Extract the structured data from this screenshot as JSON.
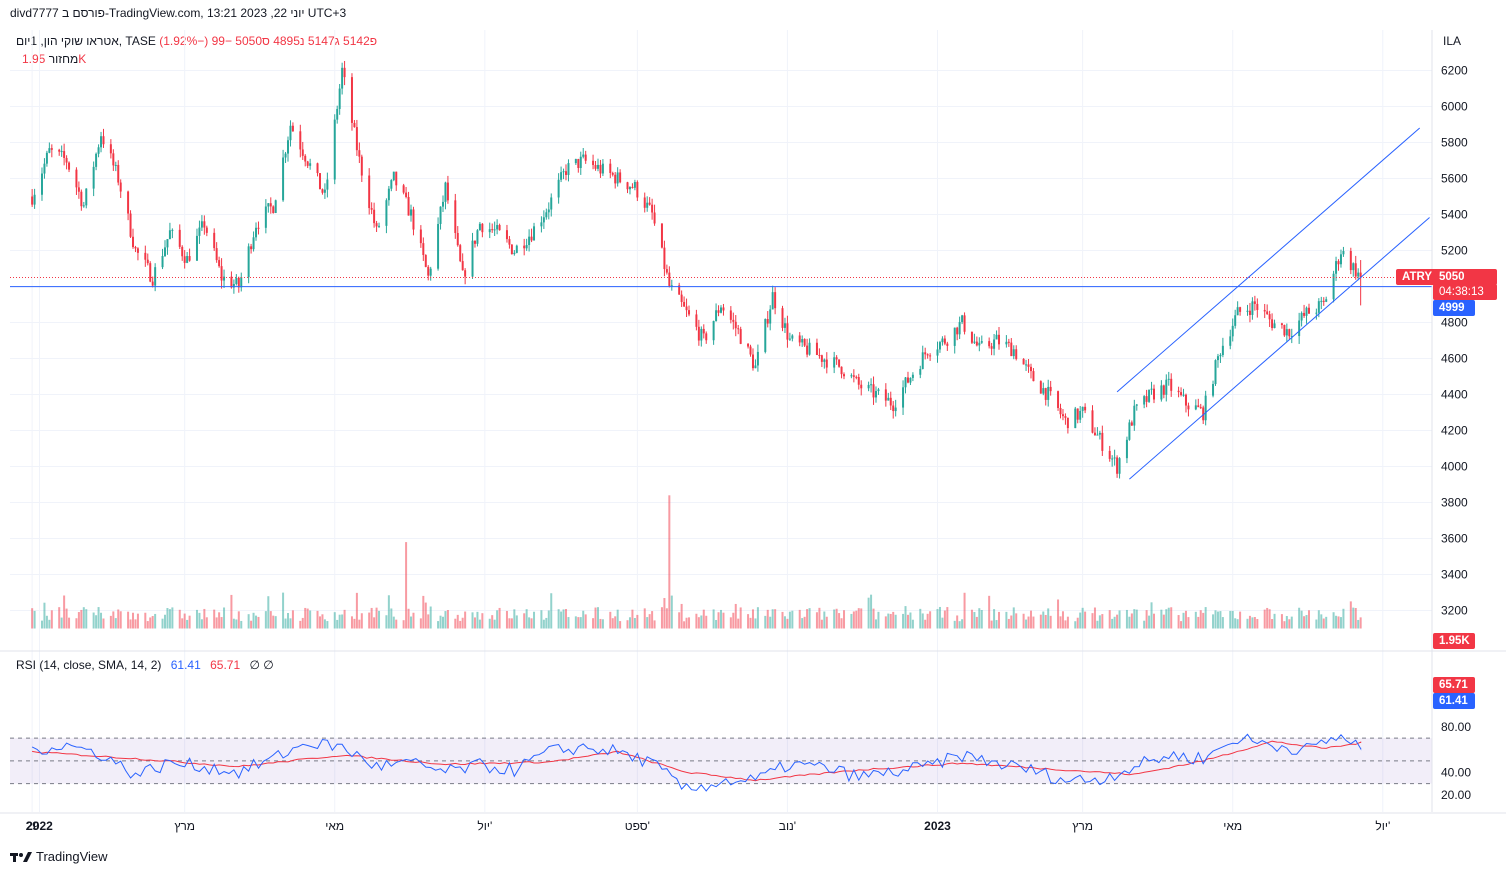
{
  "header": {
    "publisher_line": "divd7777 פורסם ב-TradingView.com, יוני 22, 2023 13:21 UTC+3"
  },
  "legend": {
    "title": "אטראו שוקי הון, 1יום, TASE",
    "ohlc": "פ5142 ג5147 נ4895 ס5050 −99 (−1.92%)"
  },
  "volume_legend": {
    "label": "מחזור",
    "value": "1.95K"
  },
  "rsi_legend": {
    "label": "RSI (14, close, SMA, 14, 2)",
    "rsi": "61.41",
    "sma": "65.71",
    "extra": "∅  ∅"
  },
  "currency": "ILA",
  "price_tags": {
    "symbol": "ATRY",
    "last": "5050",
    "countdown": "04:38:13",
    "hline": "4999",
    "volume": "1.95K",
    "rsi_sma": "65.71",
    "rsi": "61.41"
  },
  "footer": {
    "brand": "TradingView"
  },
  "colors": {
    "up": "#26a69a",
    "down": "#f23645",
    "line": "#2962ff",
    "rsi_sma": "#f23645"
  },
  "chart_data": {
    "type": "candlestick",
    "price_axis": {
      "ticks": [
        3200,
        3400,
        3600,
        3800,
        4000,
        4200,
        4400,
        4600,
        4800,
        5000,
        5200,
        5400,
        5600,
        5800,
        6000,
        6200
      ]
    },
    "rsi_axis": {
      "ticks": [
        "20.00",
        "40.00",
        "80.00"
      ],
      "upper_band": 70,
      "lower_band": 30,
      "middle": 50
    },
    "x_labels": [
      "29",
      "2022",
      "מרץ",
      "מאי",
      "יול'",
      "ספט'",
      "נוב'",
      "2023",
      "מרץ",
      "מאי",
      "יול'"
    ],
    "horizontal_line": 4999,
    "last_price": 5050,
    "channel": {
      "start": [
        "2023-03-20",
        3930
      ],
      "end": [
        "2023-06-22",
        5050
      ]
    },
    "price_path": [
      [
        "2021-12-29",
        5500
      ],
      [
        "2022-01-05",
        5750
      ],
      [
        "2022-01-12",
        5700
      ],
      [
        "2022-01-19",
        5450
      ],
      [
        "2022-01-26",
        5850
      ],
      [
        "2022-02-02",
        5600
      ],
      [
        "2022-02-09",
        5200
      ],
      [
        "2022-02-16",
        5050
      ],
      [
        "2022-02-23",
        5300
      ],
      [
        "2022-03-02",
        5150
      ],
      [
        "2022-03-09",
        5350
      ],
      [
        "2022-03-16",
        5050
      ],
      [
        "2022-03-23",
        5000
      ],
      [
        "2022-03-30",
        5350
      ],
      [
        "2022-04-06",
        5450
      ],
      [
        "2022-04-13",
        5900
      ],
      [
        "2022-04-20",
        5700
      ],
      [
        "2022-04-27",
        5500
      ],
      [
        "2022-05-04",
        6200
      ],
      [
        "2022-05-11",
        5700
      ],
      [
        "2022-05-18",
        5300
      ],
      [
        "2022-05-25",
        5600
      ],
      [
        "2022-06-01",
        5400
      ],
      [
        "2022-06-08",
        5050
      ],
      [
        "2022-06-15",
        5550
      ],
      [
        "2022-06-22",
        5050
      ],
      [
        "2022-06-29",
        5350
      ],
      [
        "2022-07-06",
        5300
      ],
      [
        "2022-07-13",
        5200
      ],
      [
        "2022-07-20",
        5300
      ],
      [
        "2022-07-27",
        5450
      ],
      [
        "2022-08-03",
        5650
      ],
      [
        "2022-08-10",
        5700
      ],
      [
        "2022-08-17",
        5650
      ],
      [
        "2022-08-24",
        5600
      ],
      [
        "2022-08-31",
        5550
      ],
      [
        "2022-09-07",
        5400
      ],
      [
        "2022-09-14",
        5000
      ],
      [
        "2022-09-21",
        4850
      ],
      [
        "2022-09-28",
        4700
      ],
      [
        "2022-10-05",
        4900
      ],
      [
        "2022-10-12",
        4750
      ],
      [
        "2022-10-19",
        4550
      ],
      [
        "2022-10-26",
        4950
      ],
      [
        "2022-11-02",
        4700
      ],
      [
        "2022-11-09",
        4650
      ],
      [
        "2022-11-16",
        4600
      ],
      [
        "2022-11-23",
        4550
      ],
      [
        "2022-11-30",
        4450
      ],
      [
        "2022-12-07",
        4400
      ],
      [
        "2022-12-14",
        4350
      ],
      [
        "2022-12-21",
        4500
      ],
      [
        "2022-12-28",
        4650
      ],
      [
        "2023-01-04",
        4700
      ],
      [
        "2023-01-11",
        4800
      ],
      [
        "2023-01-18",
        4650
      ],
      [
        "2023-01-25",
        4700
      ],
      [
        "2023-02-01",
        4650
      ],
      [
        "2023-02-08",
        4500
      ],
      [
        "2023-02-15",
        4400
      ],
      [
        "2023-02-22",
        4250
      ],
      [
        "2023-03-01",
        4300
      ],
      [
        "2023-03-08",
        4150
      ],
      [
        "2023-03-15",
        4000
      ],
      [
        "2023-03-22",
        4300
      ],
      [
        "2023-03-29",
        4400
      ],
      [
        "2023-04-05",
        4450
      ],
      [
        "2023-04-12",
        4350
      ],
      [
        "2023-04-19",
        4300
      ],
      [
        "2023-04-26",
        4650
      ],
      [
        "2023-05-03",
        4850
      ],
      [
        "2023-05-10",
        4900
      ],
      [
        "2023-05-17",
        4800
      ],
      [
        "2023-05-24",
        4750
      ],
      [
        "2023-05-31",
        4850
      ],
      [
        "2023-06-07",
        4900
      ],
      [
        "2023-06-14",
        5200
      ],
      [
        "2023-06-22",
        5050
      ]
    ],
    "volume_spikes": [
      [
        "2022-05-30",
        3580
      ],
      [
        "2022-09-14",
        3840
      ]
    ],
    "rsi_path": [
      [
        "2021-12-29",
        60
      ],
      [
        "2022-01-12",
        64
      ],
      [
        "2022-01-26",
        56
      ],
      [
        "2022-02-09",
        38
      ],
      [
        "2022-02-23",
        48
      ],
      [
        "2022-03-09",
        45
      ],
      [
        "2022-03-23",
        40
      ],
      [
        "2022-04-06",
        52
      ],
      [
        "2022-04-20",
        66
      ],
      [
        "2022-05-04",
        62
      ],
      [
        "2022-05-18",
        45
      ],
      [
        "2022-06-01",
        48
      ],
      [
        "2022-06-15",
        40
      ],
      [
        "2022-06-29",
        46
      ],
      [
        "2022-07-13",
        42
      ],
      [
        "2022-07-27",
        58
      ],
      [
        "2022-08-10",
        62
      ],
      [
        "2022-08-24",
        58
      ],
      [
        "2022-09-07",
        48
      ],
      [
        "2022-09-21",
        24
      ],
      [
        "2022-10-05",
        32
      ],
      [
        "2022-10-19",
        33
      ],
      [
        "2022-11-02",
        47
      ],
      [
        "2022-11-16",
        44
      ],
      [
        "2022-11-30",
        36
      ],
      [
        "2022-12-14",
        40
      ],
      [
        "2022-12-28",
        45
      ],
      [
        "2023-01-11",
        55
      ],
      [
        "2023-01-25",
        48
      ],
      [
        "2023-02-08",
        42
      ],
      [
        "2023-02-22",
        33
      ],
      [
        "2023-03-08",
        34
      ],
      [
        "2023-03-22",
        45
      ],
      [
        "2023-04-05",
        55
      ],
      [
        "2023-04-19",
        52
      ],
      [
        "2023-05-03",
        70
      ],
      [
        "2023-05-17",
        64
      ],
      [
        "2023-05-31",
        60
      ],
      [
        "2023-06-14",
        72
      ],
      [
        "2023-06-22",
        61.41
      ]
    ],
    "rsi_sma_path": [
      [
        "2021-12-29",
        58
      ],
      [
        "2022-02-09",
        52
      ],
      [
        "2022-03-23",
        45
      ],
      [
        "2022-05-04",
        55
      ],
      [
        "2022-06-15",
        47
      ],
      [
        "2022-07-27",
        49
      ],
      [
        "2022-08-24",
        58
      ],
      [
        "2022-09-21",
        40
      ],
      [
        "2022-10-19",
        33
      ],
      [
        "2022-11-30",
        42
      ],
      [
        "2023-01-11",
        48
      ],
      [
        "2023-02-22",
        42
      ],
      [
        "2023-03-22",
        38
      ],
      [
        "2023-04-19",
        50
      ],
      [
        "2023-05-17",
        67
      ],
      [
        "2023-06-07",
        61
      ],
      [
        "2023-06-22",
        65.71
      ]
    ]
  }
}
